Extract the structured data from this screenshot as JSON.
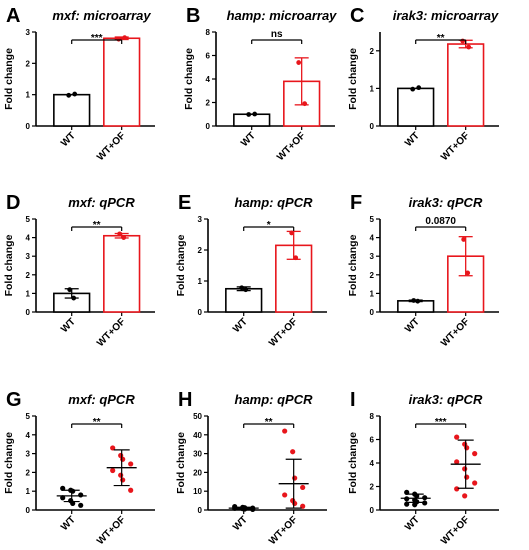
{
  "chart_data": [
    {
      "letter": "A",
      "title": "mxf: microarray",
      "type": "bar",
      "ylabel": "Fold change",
      "ylim": [
        0,
        3
      ],
      "yticks": [
        0,
        1,
        2,
        3
      ],
      "yticklabels": [
        "0",
        "1",
        "2",
        "3"
      ],
      "categories": [
        "WT",
        "WT+OF"
      ],
      "values": [
        1.0,
        2.8
      ],
      "error": [
        0,
        0.04
      ],
      "points": [
        [
          0.98,
          1.02
        ],
        [
          2.77,
          2.82
        ]
      ],
      "significance": "***",
      "colors": [
        "#000000",
        "#e8161c"
      ]
    },
    {
      "letter": "B",
      "title": "hamp: microarray",
      "type": "bar",
      "ylabel": "Fold change",
      "ylim": [
        0,
        8
      ],
      "yticks": [
        0,
        2,
        4,
        6,
        8
      ],
      "yticklabels": [
        "0",
        "2",
        "4",
        "6",
        "8"
      ],
      "categories": [
        "WT",
        "WT+OF"
      ],
      "values": [
        1.0,
        3.8
      ],
      "error": [
        0,
        2.0
      ],
      "points": [
        [
          0.98,
          1.02
        ],
        [
          5.4,
          1.9
        ]
      ],
      "significance": "ns",
      "colors": [
        "#000000",
        "#e8161c"
      ]
    },
    {
      "letter": "C",
      "title": "irak3: microarray",
      "type": "bar",
      "ylabel": "Fold change",
      "ylim": [
        0,
        2.5
      ],
      "yticks": [
        0,
        1,
        2
      ],
      "yticklabels": [
        "0",
        "1",
        "2"
      ],
      "categories": [
        "WT",
        "WT+OF"
      ],
      "values": [
        1.0,
        2.18
      ],
      "error": [
        0,
        0.1
      ],
      "points": [
        [
          0.98,
          1.02
        ],
        [
          2.26,
          2.1
        ]
      ],
      "significance": "**",
      "colors": [
        "#000000",
        "#e8161c"
      ]
    },
    {
      "letter": "D",
      "title": "mxf: qPCR",
      "type": "bar",
      "ylabel": "Fold change",
      "ylim": [
        0,
        5
      ],
      "yticks": [
        0,
        1,
        2,
        3,
        4,
        5
      ],
      "yticklabels": [
        "0",
        "1",
        "2",
        "3",
        "4",
        "5"
      ],
      "categories": [
        "WT",
        "WT+OF"
      ],
      "values": [
        1.0,
        4.1
      ],
      "error": [
        0.25,
        0.12
      ],
      "points": [
        [
          1.2,
          0.75
        ],
        [
          4.2,
          4.0
        ]
      ],
      "significance": "**",
      "colors": [
        "#000000",
        "#e8161c"
      ]
    },
    {
      "letter": "E",
      "title": "hamp: qPCR",
      "type": "bar",
      "ylabel": "Fold change",
      "ylim": [
        0,
        3
      ],
      "yticks": [
        0,
        1,
        2,
        3
      ],
      "yticklabels": [
        "0",
        "1",
        "2",
        "3"
      ],
      "categories": [
        "WT",
        "WT+OF"
      ],
      "values": [
        0.75,
        2.15
      ],
      "error": [
        0.06,
        0.45
      ],
      "points": [
        [
          0.78,
          0.72
        ],
        [
          2.55,
          1.75
        ]
      ],
      "significance": "*",
      "colors": [
        "#000000",
        "#e8161c"
      ]
    },
    {
      "letter": "F",
      "title": "irak3: qPCR",
      "type": "bar",
      "ylabel": "Fold change",
      "ylim": [
        0,
        5
      ],
      "yticks": [
        0,
        1,
        2,
        3,
        4,
        5
      ],
      "yticklabels": [
        "0",
        "1",
        "2",
        "3",
        "4",
        "5"
      ],
      "categories": [
        "WT",
        "WT+OF"
      ],
      "values": [
        0.6,
        3.0
      ],
      "error": [
        0.04,
        1.05
      ],
      "points": [
        [
          0.62,
          0.58
        ],
        [
          3.9,
          2.1
        ]
      ],
      "significance": "0.0870",
      "colors": [
        "#000000",
        "#e8161c"
      ]
    },
    {
      "letter": "G",
      "title": "mxf: qPCR",
      "type": "scatter",
      "ylabel": "Fold change",
      "ylim": [
        0,
        5
      ],
      "yticks": [
        0,
        1,
        2,
        3,
        4,
        5
      ],
      "yticklabels": [
        "0",
        "1",
        "2",
        "3",
        "4",
        "5"
      ],
      "categories": [
        "WT",
        "WT+OF"
      ],
      "means": [
        0.75,
        2.25
      ],
      "sd": [
        0.3,
        0.95
      ],
      "points": [
        [
          1.15,
          1.05,
          1.0,
          0.8,
          0.65,
          0.5,
          0.35,
          0.25
        ],
        [
          3.3,
          2.9,
          2.7,
          2.45,
          2.1,
          1.85,
          1.6,
          1.05
        ]
      ],
      "significance": "**",
      "colors": [
        "#000000",
        "#e8161c"
      ]
    },
    {
      "letter": "H",
      "title": "hamp: qPCR",
      "type": "scatter",
      "ylabel": "Fold change",
      "ylim": [
        0,
        50
      ],
      "yticks": [
        0,
        10,
        20,
        30,
        40,
        50
      ],
      "yticklabels": [
        "0",
        "10",
        "20",
        "30",
        "40",
        "50"
      ],
      "categories": [
        "WT",
        "WT+OF"
      ],
      "means": [
        1.0,
        14.0
      ],
      "sd": [
        0.5,
        13.0
      ],
      "points": [
        [
          1.8,
          1.4,
          1.2,
          1.0,
          0.9,
          0.7,
          0.5,
          0.3
        ],
        [
          42,
          31,
          17,
          12,
          8,
          5,
          3.5,
          2
        ]
      ],
      "significance": "**",
      "colors": [
        "#000000",
        "#e8161c"
      ]
    },
    {
      "letter": "I",
      "title": "irak3: qPCR",
      "type": "scatter",
      "ylabel": "Fold change",
      "ylim": [
        0,
        8
      ],
      "yticks": [
        0,
        2,
        4,
        6,
        8
      ],
      "yticklabels": [
        "0",
        "2",
        "4",
        "6",
        "8"
      ],
      "categories": [
        "WT",
        "WT+OF"
      ],
      "means": [
        1.0,
        3.9
      ],
      "sd": [
        0.35,
        2.05
      ],
      "points": [
        [
          1.5,
          1.35,
          1.2,
          1.05,
          0.95,
          0.85,
          0.7,
          0.6,
          0.5,
          0.45
        ],
        [
          6.2,
          5.6,
          5.3,
          4.8,
          4.1,
          3.5,
          2.8,
          2.3,
          1.8,
          1.2
        ]
      ],
      "significance": "***",
      "colors": [
        "#000000",
        "#e8161c"
      ]
    }
  ]
}
